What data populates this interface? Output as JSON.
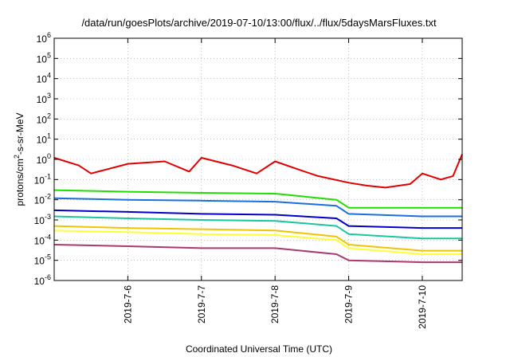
{
  "chart_data": {
    "type": "line",
    "title": "/data/run/goesPlots/archive/2019-07-10/13:00/flux/../flux/5daysMarsFluxes.txt",
    "xlabel": "Coordinated Universal Time (UTC)",
    "ylabel": {
      "base": "protons/cm",
      "sup": "2",
      "rest": "-s-sr-MeV"
    },
    "yscale": "log",
    "ylim": [
      1e-06,
      1000000.0
    ],
    "y_ticks": [
      {
        "base": "10",
        "exp": "6"
      },
      {
        "base": "10",
        "exp": "5"
      },
      {
        "base": "10",
        "exp": "4"
      },
      {
        "base": "10",
        "exp": "3"
      },
      {
        "base": "10",
        "exp": "2"
      },
      {
        "base": "10",
        "exp": "1"
      },
      {
        "base": "10",
        "exp": "0"
      },
      {
        "base": "10",
        "exp": "-1"
      },
      {
        "base": "10",
        "exp": "-2"
      },
      {
        "base": "10",
        "exp": "-3"
      },
      {
        "base": "10",
        "exp": "-4"
      },
      {
        "base": "10",
        "exp": "-5"
      },
      {
        "base": "10",
        "exp": "-6"
      }
    ],
    "xlim": [
      "2019-07-05 00:00",
      "2019-07-10 13:00"
    ],
    "x_ticks": [
      "2019-7-6",
      "2019-7-7",
      "2019-7-8",
      "2019-7-9",
      "2019-7-10"
    ],
    "grid": true,
    "series": [
      {
        "color": "#e00000",
        "x": [
          "2019-07-05 00:00",
          "2019-07-05 08:00",
          "2019-07-05 12:00",
          "2019-07-06 00:00",
          "2019-07-06 12:00",
          "2019-07-06 20:00",
          "2019-07-07 00:00",
          "2019-07-07 10:00",
          "2019-07-07 18:00",
          "2019-07-08 00:00",
          "2019-07-08 08:00",
          "2019-07-08 14:00",
          "2019-07-09 00:00",
          "2019-07-09 06:00",
          "2019-07-09 12:00",
          "2019-07-09 20:00",
          "2019-07-10 00:00",
          "2019-07-10 06:00",
          "2019-07-10 10:00",
          "2019-07-10 13:00"
        ],
        "values": [
          1.2,
          0.5,
          0.2,
          0.6,
          0.8,
          0.25,
          1.2,
          0.5,
          0.2,
          0.8,
          0.3,
          0.15,
          0.07,
          0.05,
          0.04,
          0.06,
          0.2,
          0.1,
          0.15,
          1.8
        ]
      },
      {
        "color": "#22dd00",
        "x": [
          "2019-07-05 00:00",
          "2019-07-06 00:00",
          "2019-07-07 00:00",
          "2019-07-08 00:00",
          "2019-07-08 20:00",
          "2019-07-09 00:00",
          "2019-07-10 00:00",
          "2019-07-10 13:00"
        ],
        "values": [
          0.03,
          0.025,
          0.022,
          0.02,
          0.01,
          0.004,
          0.004,
          0.004
        ]
      },
      {
        "color": "#1a6edd",
        "x": [
          "2019-07-05 00:00",
          "2019-07-06 00:00",
          "2019-07-07 00:00",
          "2019-07-08 00:00",
          "2019-07-08 20:00",
          "2019-07-09 00:00",
          "2019-07-10 00:00",
          "2019-07-10 13:00"
        ],
        "values": [
          0.012,
          0.01,
          0.009,
          0.008,
          0.005,
          0.002,
          0.0015,
          0.0015
        ]
      },
      {
        "color": "#0000cc",
        "x": [
          "2019-07-05 00:00",
          "2019-07-06 00:00",
          "2019-07-07 00:00",
          "2019-07-08 00:00",
          "2019-07-08 20:00",
          "2019-07-09 00:00",
          "2019-07-10 00:00",
          "2019-07-10 13:00"
        ],
        "values": [
          0.003,
          0.0025,
          0.002,
          0.0018,
          0.0012,
          0.0005,
          0.0004,
          0.0004
        ]
      },
      {
        "color": "#19c6a0",
        "x": [
          "2019-07-05 00:00",
          "2019-07-06 00:00",
          "2019-07-07 00:00",
          "2019-07-08 00:00",
          "2019-07-08 20:00",
          "2019-07-09 00:00",
          "2019-07-10 00:00",
          "2019-07-10 13:00"
        ],
        "values": [
          0.0015,
          0.0012,
          0.001,
          0.0009,
          0.0005,
          0.0002,
          0.00012,
          0.00012
        ]
      },
      {
        "color": "#f2c400",
        "x": [
          "2019-07-05 00:00",
          "2019-07-06 00:00",
          "2019-07-07 00:00",
          "2019-07-08 00:00",
          "2019-07-08 20:00",
          "2019-07-09 00:00",
          "2019-07-10 00:00",
          "2019-07-10 13:00"
        ],
        "values": [
          0.0005,
          0.0004,
          0.00035,
          0.0003,
          0.00015,
          6e-05,
          3e-05,
          3e-05
        ]
      },
      {
        "color": "#ffff33",
        "x": [
          "2019-07-05 00:00",
          "2019-07-06 00:00",
          "2019-07-07 00:00",
          "2019-07-08 00:00",
          "2019-07-08 20:00",
          "2019-07-09 00:00",
          "2019-07-10 00:00",
          "2019-07-10 13:00"
        ],
        "values": [
          0.0003,
          0.00025,
          0.0002,
          0.00018,
          0.0001,
          4e-05,
          2e-05,
          2e-05
        ]
      },
      {
        "color": "#a83a70",
        "x": [
          "2019-07-05 00:00",
          "2019-07-06 00:00",
          "2019-07-07 00:00",
          "2019-07-08 00:00",
          "2019-07-08 20:00",
          "2019-07-09 00:00",
          "2019-07-10 00:00",
          "2019-07-10 13:00"
        ],
        "values": [
          6e-05,
          5e-05,
          4e-05,
          4e-05,
          2e-05,
          1e-05,
          8e-06,
          8e-06
        ]
      }
    ]
  }
}
